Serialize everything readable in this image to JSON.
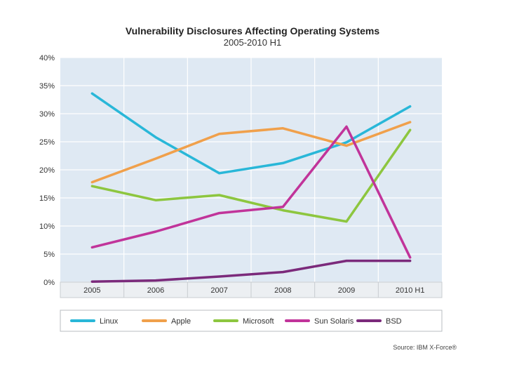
{
  "chart_data": {
    "type": "line",
    "title": "Vulnerability Disclosures Affecting Operating Systems",
    "subtitle": "2005-2010 H1",
    "categories": [
      "2005",
      "2006",
      "2007",
      "2008",
      "2009",
      "2010 H1"
    ],
    "y_ticks": [
      "0%",
      "5%",
      "10%",
      "15%",
      "20%",
      "25%",
      "30%",
      "35%",
      "40%"
    ],
    "ylim": [
      0,
      40
    ],
    "y_unit": "%",
    "grid": true,
    "legend_position": "bottom",
    "source": "Source: IBM X-Force®",
    "series": [
      {
        "name": "Linux",
        "color": "#29b7d8",
        "values": [
          33.6,
          25.8,
          19.4,
          21.2,
          24.9,
          31.3
        ]
      },
      {
        "name": "Apple",
        "color": "#f0a04b",
        "values": [
          17.8,
          22.0,
          26.4,
          27.4,
          24.3,
          28.5
        ]
      },
      {
        "name": "Microsoft",
        "color": "#8dc63f",
        "values": [
          17.1,
          14.6,
          15.5,
          12.8,
          10.8,
          27.1
        ]
      },
      {
        "name": "Sun Solaris",
        "color": "#c1349a",
        "values": [
          6.2,
          9.0,
          12.3,
          13.4,
          27.7,
          4.4
        ]
      },
      {
        "name": "BSD",
        "color": "#7b2a7b",
        "values": [
          0.1,
          0.3,
          1.0,
          1.8,
          3.8,
          3.8
        ]
      }
    ]
  }
}
